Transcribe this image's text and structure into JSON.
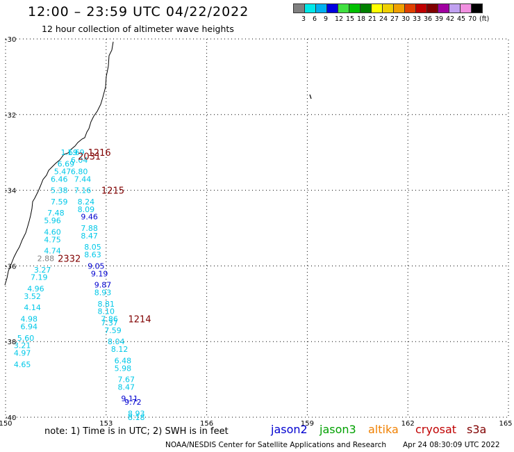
{
  "header": {
    "title": "12:00 – 23:59 UTC 04/22/2022",
    "subtitle": "12 hour collection of altimeter wave heights"
  },
  "scale": {
    "colors": [
      "#808080",
      "#00e8e8",
      "#00b0f0",
      "#0000e0",
      "#40e040",
      "#00c000",
      "#008000",
      "#ffff00",
      "#f0d000",
      "#f0a000",
      "#e04000",
      "#c00000",
      "#800000",
      "#a000a0",
      "#c0a0f0",
      "#f090e0",
      "#000000"
    ],
    "labels": [
      "3",
      "6",
      "9",
      "12",
      "15",
      "18",
      "21",
      "24",
      "27",
      "30",
      "33",
      "36",
      "39",
      "42",
      "45",
      "70",
      "(ft)"
    ]
  },
  "axes": {
    "lat_labels": [
      "-30",
      "-32",
      "-34",
      "-36",
      "-38",
      "-40"
    ],
    "lon_labels": [
      "150",
      "153",
      "156",
      "159",
      "162",
      "165"
    ]
  },
  "map_data": {
    "lat_range": [
      -40,
      -30
    ],
    "lon_range": [
      150,
      165
    ],
    "colors": {
      "jason2": "#0000d0",
      "jason3": "#00a000",
      "altika": "#f08000",
      "cryosat": "#c00000",
      "s3a": "#800000"
    },
    "pass_labels": [
      {
        "text": "1216",
        "lat": -33.0,
        "lon": 152.8
      },
      {
        "text": "2031",
        "lat": -33.1,
        "lon": 152.5
      },
      {
        "text": "1215",
        "lat": -34.0,
        "lon": 153.2
      },
      {
        "text": "2332",
        "lat": -35.8,
        "lon": 151.9
      },
      {
        "text": "1214",
        "lat": -37.4,
        "lon": 154.0
      }
    ],
    "wave_heights": [
      {
        "text": "1.69",
        "lat": -33.0,
        "lon": 151.9,
        "color": "#00c8e8"
      },
      {
        "text": "1.69",
        "lat": -33.0,
        "lon": 152.1,
        "color": "#00c8e8"
      },
      {
        "text": "6.04",
        "lat": -33.2,
        "lon": 152.2,
        "color": "#00c8e8"
      },
      {
        "text": "6.69",
        "lat": -33.3,
        "lon": 151.8,
        "color": "#00c8e8"
      },
      {
        "text": "6.80",
        "lat": -33.5,
        "lon": 152.2,
        "color": "#00c8e8"
      },
      {
        "text": "5.47",
        "lat": -33.5,
        "lon": 151.7,
        "color": "#00c8e8"
      },
      {
        "text": "7.44",
        "lat": -33.7,
        "lon": 152.3,
        "color": "#00c8e8"
      },
      {
        "text": "6.46",
        "lat": -33.7,
        "lon": 151.6,
        "color": "#00c8e8"
      },
      {
        "text": "7.16",
        "lat": -34.0,
        "lon": 152.3,
        "color": "#00c8e8"
      },
      {
        "text": "5.38",
        "lat": -34.0,
        "lon": 151.6,
        "color": "#00c8e8"
      },
      {
        "text": "8.24",
        "lat": -34.3,
        "lon": 152.4,
        "color": "#00c8e8"
      },
      {
        "text": "7.59",
        "lat": -34.3,
        "lon": 151.6,
        "color": "#00c8e8"
      },
      {
        "text": "8.09",
        "lat": -34.5,
        "lon": 152.4,
        "color": "#00c8e8"
      },
      {
        "text": "7.48",
        "lat": -34.6,
        "lon": 151.5,
        "color": "#00c8e8"
      },
      {
        "text": "9.46",
        "lat": -34.7,
        "lon": 152.5,
        "color": "#0000d0"
      },
      {
        "text": "5.96",
        "lat": -34.8,
        "lon": 151.4,
        "color": "#00c8e8"
      },
      {
        "text": "7.88",
        "lat": -35.0,
        "lon": 152.5,
        "color": "#00c8e8"
      },
      {
        "text": "4.60",
        "lat": -35.1,
        "lon": 151.4,
        "color": "#00c8e8"
      },
      {
        "text": "8.47",
        "lat": -35.2,
        "lon": 152.5,
        "color": "#00c8e8"
      },
      {
        "text": "4.75",
        "lat": -35.3,
        "lon": 151.4,
        "color": "#00c8e8"
      },
      {
        "text": "8.05",
        "lat": -35.5,
        "lon": 152.6,
        "color": "#00c8e8"
      },
      {
        "text": "4.74",
        "lat": -35.6,
        "lon": 151.4,
        "color": "#00c8e8"
      },
      {
        "text": "8.63",
        "lat": -35.7,
        "lon": 152.6,
        "color": "#00c8e8"
      },
      {
        "text": "2.88",
        "lat": -35.8,
        "lon": 151.2,
        "color": "#808080"
      },
      {
        "text": "9.05",
        "lat": -36.0,
        "lon": 152.7,
        "color": "#0000d0"
      },
      {
        "text": "3.27",
        "lat": -36.1,
        "lon": 151.1,
        "color": "#00c8e8"
      },
      {
        "text": "9.19",
        "lat": -36.2,
        "lon": 152.8,
        "color": "#0000d0"
      },
      {
        "text": "7.19",
        "lat": -36.3,
        "lon": 151.0,
        "color": "#00c8e8"
      },
      {
        "text": "9.87",
        "lat": -36.5,
        "lon": 152.9,
        "color": "#0000d0"
      },
      {
        "text": "4.96",
        "lat": -36.6,
        "lon": 150.9,
        "color": "#00c8e8"
      },
      {
        "text": "8.93",
        "lat": -36.7,
        "lon": 152.9,
        "color": "#00c8e8"
      },
      {
        "text": "3.52",
        "lat": -36.8,
        "lon": 150.8,
        "color": "#00c8e8"
      },
      {
        "text": "8.81",
        "lat": -37.0,
        "lon": 153.0,
        "color": "#00c8e8"
      },
      {
        "text": "4.14",
        "lat": -37.1,
        "lon": 150.8,
        "color": "#00c8e8"
      },
      {
        "text": "8.10",
        "lat": -37.2,
        "lon": 153.0,
        "color": "#00c8e8"
      },
      {
        "text": "4.98",
        "lat": -37.4,
        "lon": 150.7,
        "color": "#00c8e8"
      },
      {
        "text": "7.86",
        "lat": -37.4,
        "lon": 153.1,
        "color": "#00c8e8"
      },
      {
        "text": "7.37",
        "lat": -37.5,
        "lon": 153.1,
        "color": "#00c8e8"
      },
      {
        "text": "6.94",
        "lat": -37.6,
        "lon": 150.7,
        "color": "#00c8e8"
      },
      {
        "text": "7.59",
        "lat": -37.7,
        "lon": 153.2,
        "color": "#00c8e8"
      },
      {
        "text": "5.60",
        "lat": -37.9,
        "lon": 150.6,
        "color": "#00c8e8"
      },
      {
        "text": "8.04",
        "lat": -38.0,
        "lon": 153.3,
        "color": "#00c8e8"
      },
      {
        "text": "3.21",
        "lat": -38.1,
        "lon": 150.5,
        "color": "#00c8e8"
      },
      {
        "text": "8.12",
        "lat": -38.2,
        "lon": 153.4,
        "color": "#00c8e8"
      },
      {
        "text": "4.97",
        "lat": -38.3,
        "lon": 150.5,
        "color": "#00c8e8"
      },
      {
        "text": "6.48",
        "lat": -38.5,
        "lon": 153.5,
        "color": "#00c8e8"
      },
      {
        "text": "4.65",
        "lat": -38.6,
        "lon": 150.5,
        "color": "#00c8e8"
      },
      {
        "text": "5.98",
        "lat": -38.7,
        "lon": 153.5,
        "color": "#00c8e8"
      },
      {
        "text": "7.67",
        "lat": -39.0,
        "lon": 153.6,
        "color": "#00c8e8"
      },
      {
        "text": "8.47",
        "lat": -39.2,
        "lon": 153.6,
        "color": "#00c8e8"
      },
      {
        "text": "9.11",
        "lat": -39.5,
        "lon": 153.7,
        "color": "#0000d0"
      },
      {
        "text": "9.72",
        "lat": -39.6,
        "lon": 153.8,
        "color": "#0000d0"
      },
      {
        "text": "8.93",
        "lat": -39.9,
        "lon": 153.9,
        "color": "#00c8e8"
      },
      {
        "text": "8.18",
        "lat": -40.0,
        "lon": 153.9,
        "color": "#00c8e8"
      }
    ]
  },
  "footer": {
    "note": "note:  1) Time is in UTC;  2) SWH is in feet",
    "legend": [
      {
        "label": "jason2",
        "color": "#0000d0"
      },
      {
        "label": "jason3",
        "color": "#00a000"
      },
      {
        "label": "altika",
        "color": "#f08000"
      },
      {
        "label": "cryosat",
        "color": "#c00000"
      },
      {
        "label": "s3a",
        "color": "#800000"
      }
    ],
    "credit": "NOAA/NESDIS Center for Satellite Applications and Research",
    "date": "Apr 24 08:30:09 UTC 2022"
  }
}
